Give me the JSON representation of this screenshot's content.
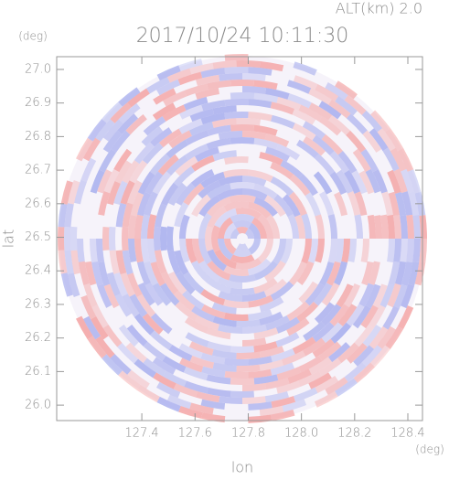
{
  "chart_data": {
    "type": "radar-ppi",
    "title": "2017/10/24 10:11:30",
    "altitude_label": "ALT(km) 2.0",
    "x_label": "lon",
    "x_unit": "(deg)",
    "y_label": "lat",
    "y_unit": "(deg)",
    "xlim": [
      127.08,
      128.455
    ],
    "xticks": [
      127.4,
      127.6,
      127.8,
      {
        "value": 128.0,
        "label": "128.0"
      },
      128.2,
      128.4
    ],
    "ylim": [
      25.954,
      27.038
    ],
    "yticks": [
      {
        "value": 26.0,
        "label": "26.0"
      },
      26.1,
      26.2,
      26.3,
      26.4,
      26.5,
      26.6,
      26.7,
      26.8,
      26.9,
      {
        "value": 27.0,
        "label": "27.0"
      }
    ],
    "colors": [
      "#f4a6a6",
      "#aab0ee"
    ]
  }
}
